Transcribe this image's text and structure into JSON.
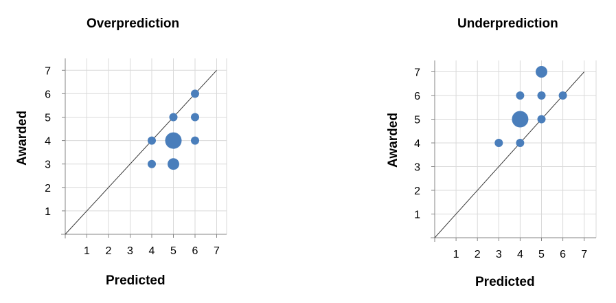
{
  "chart_data": [
    {
      "type": "scatter",
      "title": "Overprediction",
      "xlabel": "Predicted",
      "ylabel": "Awarded",
      "xlim": [
        0,
        7
      ],
      "ylim": [
        0,
        7
      ],
      "x_ticks": [
        "1",
        "2",
        "3",
        "4",
        "5",
        "6",
        "7"
      ],
      "y_ticks": [
        "1",
        "2",
        "3",
        "4",
        "5",
        "6",
        "7"
      ],
      "grid": true,
      "diagonal_reference_line": true,
      "marker_color": "#4a7ebb",
      "points": [
        {
          "x": 4,
          "y": 3,
          "size": 1
        },
        {
          "x": 4,
          "y": 4,
          "size": 1
        },
        {
          "x": 5,
          "y": 3,
          "size": 2
        },
        {
          "x": 5,
          "y": 4,
          "size": 4
        },
        {
          "x": 5,
          "y": 5,
          "size": 1
        },
        {
          "x": 6,
          "y": 4,
          "size": 1
        },
        {
          "x": 6,
          "y": 5,
          "size": 1
        },
        {
          "x": 6,
          "y": 6,
          "size": 1
        }
      ]
    },
    {
      "type": "scatter",
      "title": "Underprediction",
      "xlabel": "Predicted",
      "ylabel": "Awarded",
      "xlim": [
        0,
        7
      ],
      "ylim": [
        0,
        7
      ],
      "x_ticks": [
        "1",
        "2",
        "3",
        "4",
        "5",
        "6",
        "7"
      ],
      "y_ticks": [
        "1",
        "2",
        "3",
        "4",
        "5",
        "6",
        "7"
      ],
      "grid": true,
      "diagonal_reference_line": true,
      "marker_color": "#4a7ebb",
      "points": [
        {
          "x": 3,
          "y": 4,
          "size": 1
        },
        {
          "x": 4,
          "y": 4,
          "size": 1
        },
        {
          "x": 4,
          "y": 5,
          "size": 4
        },
        {
          "x": 4,
          "y": 6,
          "size": 1
        },
        {
          "x": 5,
          "y": 5,
          "size": 1
        },
        {
          "x": 5,
          "y": 6,
          "size": 1
        },
        {
          "x": 5,
          "y": 7,
          "size": 2
        },
        {
          "x": 6,
          "y": 6,
          "size": 1
        }
      ]
    }
  ]
}
